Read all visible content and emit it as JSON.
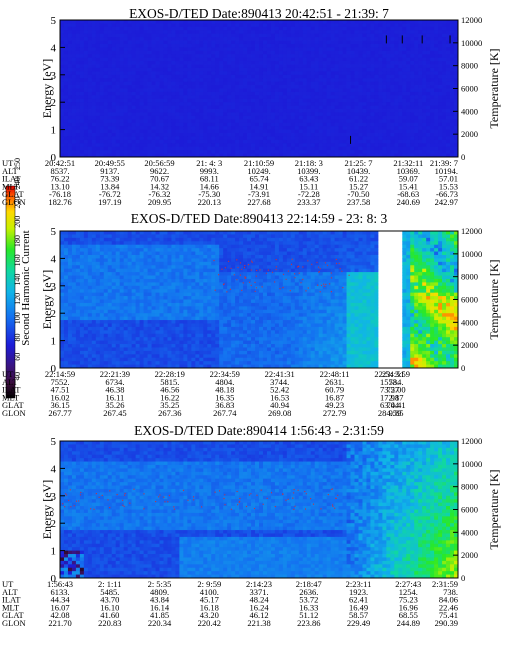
{
  "colorbar": {
    "label": "Second Harmonic Current",
    "ticks": [
      "40",
      "60",
      "80",
      "100",
      "120",
      "140",
      "160",
      "180",
      "200",
      "220",
      "240",
      "250"
    ]
  },
  "panels": [
    {
      "title": "EXOS-D/TED   Date:890413  20:42:51 - 21:39: 7",
      "ylabel": "Energy [eV]",
      "y2label": "Temperature [K]",
      "yticks": [
        "0",
        "1",
        "2",
        "3",
        "4",
        "5"
      ],
      "y2ticks": [
        "0",
        "2000",
        "4000",
        "6000",
        "8000",
        "10000",
        "12000"
      ],
      "rows": [
        {
          "label": "UT",
          "values": [
            "20:42:51",
            "20:49:55",
            "20:56:59",
            "21: 4: 3",
            "21:10:59",
            "21:18: 3",
            "21:25: 7",
            "21:32:11",
            "21:39: 7"
          ]
        },
        {
          "label": "ALT",
          "values": [
            "8537.",
            "9137.",
            "9622.",
            "9993.",
            "10249.",
            "10399.",
            "10439.",
            "10369.",
            "10194."
          ]
        },
        {
          "label": "ILAT",
          "values": [
            "76.22",
            "73.39",
            "70.67",
            "68.11",
            "65.74",
            "63.43",
            "61.22",
            "59.07",
            "57.01"
          ]
        },
        {
          "label": "MLT",
          "values": [
            "13.10",
            "13.84",
            "14.32",
            "14.66",
            "14.91",
            "15.11",
            "15.27",
            "15.41",
            "15.53"
          ]
        },
        {
          "label": "GLAT",
          "values": [
            "-76.18",
            "-76.72",
            "-76.32",
            "-75.30",
            "-73.91",
            "-72.28",
            "-70.50",
            "-68.63",
            "-66.73"
          ]
        },
        {
          "label": "GLON",
          "values": [
            "182.76",
            "197.19",
            "209.95",
            "220.13",
            "227.68",
            "233.37",
            "237.58",
            "240.69",
            "242.97"
          ]
        }
      ]
    },
    {
      "title": "EXOS-D/TED   Date:890413  22:14:59 - 23: 8: 3",
      "ylabel": "Energy [eV]",
      "y2label": "Temperature [K]",
      "yticks": [
        "0",
        "1",
        "2",
        "3",
        "4",
        "5"
      ],
      "y2ticks": [
        "0",
        "2000",
        "4000",
        "6000",
        "8000",
        "10000",
        "12000"
      ],
      "rows": [
        {
          "label": "UT",
          "values": [
            "22:14:59",
            "22:21:39",
            "22:28:19",
            "22:34:59",
            "22:41:31",
            "22:48:11",
            "22:54:51",
            "23: 3:59"
          ]
        },
        {
          "label": "ALT",
          "values": [
            "7552.",
            "6734.",
            "5815.",
            "4804.",
            "3744.",
            "2631.",
            "1573.",
            "584."
          ]
        },
        {
          "label": "ILAT",
          "values": [
            "47.51",
            "46.38",
            "46.56",
            "48.18",
            "52.42",
            "60.79",
            "73.57",
            "72.00"
          ]
        },
        {
          "label": "MLT",
          "values": [
            "16.02",
            "16.11",
            "16.22",
            "16.35",
            "16.53",
            "16.87",
            "17.98",
            "2.17"
          ]
        },
        {
          "label": "GLAT",
          "values": [
            "36.15",
            "35.26",
            "35.25",
            "36.83",
            "40.94",
            "49.23",
            "63.04",
            "74.41"
          ]
        },
        {
          "label": "GLON",
          "values": [
            "267.77",
            "267.45",
            "267.36",
            "267.74",
            "269.08",
            "272.79",
            "284.59",
            "9.85"
          ]
        }
      ]
    },
    {
      "title": "EXOS-D/TED   Date:890414   1:56:43 - 2:31:59",
      "ylabel": "Energy [eV]",
      "y2label": "Temperature [K]",
      "yticks": [
        "0",
        "1",
        "2",
        "3",
        "4",
        "5"
      ],
      "y2ticks": [
        "0",
        "2000",
        "4000",
        "6000",
        "8000",
        "10000",
        "12000"
      ],
      "rows": [
        {
          "label": "UT",
          "values": [
            "1:56:43",
            "2: 1:11",
            "2: 5:35",
            "2: 9:59",
            "2:14:23",
            "2:18:47",
            "2:23:11",
            "2:27:43",
            "2:31:59"
          ]
        },
        {
          "label": "ALT",
          "values": [
            "6133.",
            "5485.",
            "4809.",
            "4100.",
            "3371.",
            "2636.",
            "1923.",
            "1254.",
            "738."
          ]
        },
        {
          "label": "ILAT",
          "values": [
            "44.34",
            "43.70",
            "43.84",
            "45.17",
            "48.24",
            "53.72",
            "62.41",
            "75.23",
            "84.06"
          ]
        },
        {
          "label": "MLT",
          "values": [
            "16.07",
            "16.10",
            "16.14",
            "16.18",
            "16.24",
            "16.33",
            "16.49",
            "16.96",
            "22.46"
          ]
        },
        {
          "label": "GLAT",
          "values": [
            "42.08",
            "41.60",
            "41.85",
            "43.20",
            "46.12",
            "51.12",
            "58.57",
            "68.55",
            "75.41"
          ]
        },
        {
          "label": "GLON",
          "values": [
            "221.70",
            "220.83",
            "220.34",
            "220.42",
            "221.38",
            "223.86",
            "229.49",
            "244.89",
            "290.39"
          ]
        }
      ]
    }
  ],
  "chart_data": [
    {
      "type": "heatmap",
      "title": "EXOS-D/TED   Date:890413  20:42:51 - 21:39: 7",
      "ylabel": "Energy [eV]",
      "y2label": "Temperature [K]",
      "ylim": [
        0,
        5
      ],
      "y2lim": [
        0,
        12000
      ],
      "description_values": "nearly uniform low level (~60) across all times and energies",
      "temperature_points": [
        {
          "ut": "21:18: 3",
          "T": 1500
        },
        {
          "ut": "21:28:30",
          "T": 10300
        },
        {
          "ut": "21:30:20",
          "T": 10300
        },
        {
          "ut": "21:32:11",
          "T": 10300
        },
        {
          "ut": "21:39: 7",
          "T": 10300
        }
      ]
    },
    {
      "type": "heatmap",
      "title": "EXOS-D/TED   Date:890413  22:14:59 - 23: 8: 3",
      "ylabel": "Energy [eV]",
      "y2label": "Temperature [K]",
      "ylim": [
        0,
        5
      ],
      "y2lim": [
        0,
        12000
      ]
    },
    {
      "type": "heatmap",
      "title": "EXOS-D/TED   Date:890414   1:56:43 - 2:31:59",
      "ylabel": "Energy [eV]",
      "y2label": "Temperature [K]",
      "ylim": [
        0,
        5
      ],
      "y2lim": [
        0,
        12000
      ]
    }
  ]
}
